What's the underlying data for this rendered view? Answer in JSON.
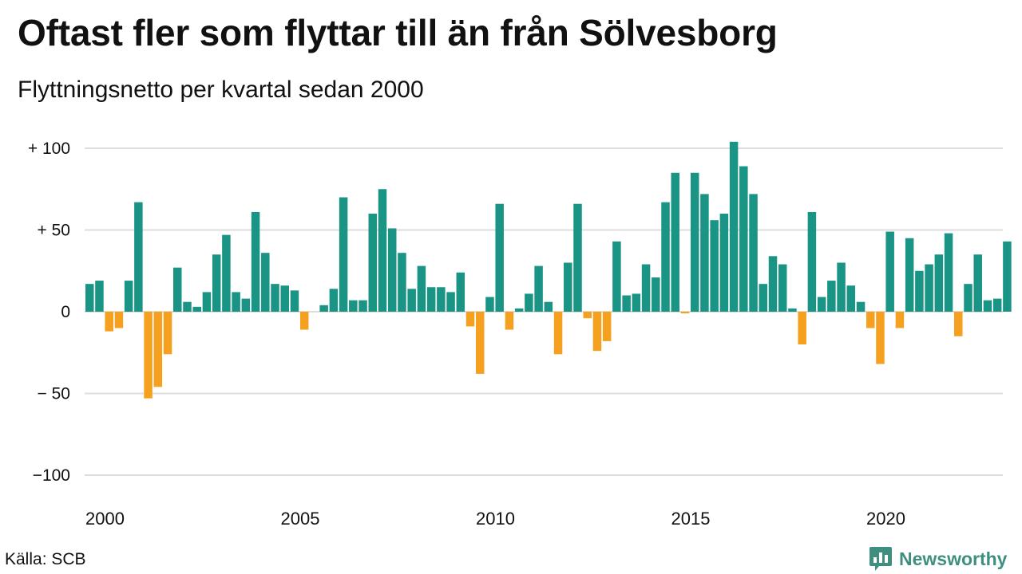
{
  "header": {
    "title": "Oftast fler som flyttar till än från Sölvesborg",
    "subtitle": "Flyttningsnetto per kvartal sedan 2000"
  },
  "footer": {
    "source": "Källa: SCB",
    "brand": "Newsworthy",
    "brand_icon": "bar-chart-logo-icon",
    "brand_color": "#3f8f80"
  },
  "chart_data": {
    "type": "bar",
    "title": "Oftast fler som flyttar till än från Sölvesborg",
    "subtitle": "Flyttningsnetto per kvartal sedan 2000",
    "x_start": 2000,
    "periods_per_year": 4,
    "x_tick_labels": [
      "2000",
      "2005",
      "2010",
      "2015",
      "2020"
    ],
    "y_ticks": [
      {
        "value": 100,
        "label": "+ 100"
      },
      {
        "value": 50,
        "label": "+  50"
      },
      {
        "value": 0,
        "label": "0"
      },
      {
        "value": -50,
        "label": "− 50"
      },
      {
        "value": -100,
        "label": "−100"
      }
    ],
    "ylim": [
      -100,
      100
    ],
    "grid": true,
    "colors": {
      "positive": "#1a9485",
      "negative": "#f5a01e",
      "grid": "#dddddd"
    },
    "values": [
      17,
      19,
      -12,
      -10,
      19,
      67,
      -53,
      -46,
      -26,
      27,
      6,
      3,
      12,
      35,
      47,
      12,
      8,
      61,
      36,
      17,
      16,
      13,
      -11,
      0,
      4,
      14,
      70,
      7,
      7,
      60,
      75,
      51,
      36,
      14,
      28,
      15,
      15,
      12,
      24,
      -9,
      -38,
      9,
      66,
      -11,
      2,
      11,
      28,
      6,
      -26,
      30,
      66,
      -4,
      -24,
      -18,
      43,
      10,
      11,
      29,
      21,
      67,
      85,
      -1,
      85,
      72,
      56,
      60,
      104,
      89,
      72,
      17,
      34,
      29,
      2,
      -20,
      61,
      9,
      19,
      30,
      16,
      6,
      -10,
      -32,
      49,
      -10,
      45,
      25,
      29,
      35,
      48,
      -15,
      17,
      35,
      7,
      8,
      43
    ]
  }
}
